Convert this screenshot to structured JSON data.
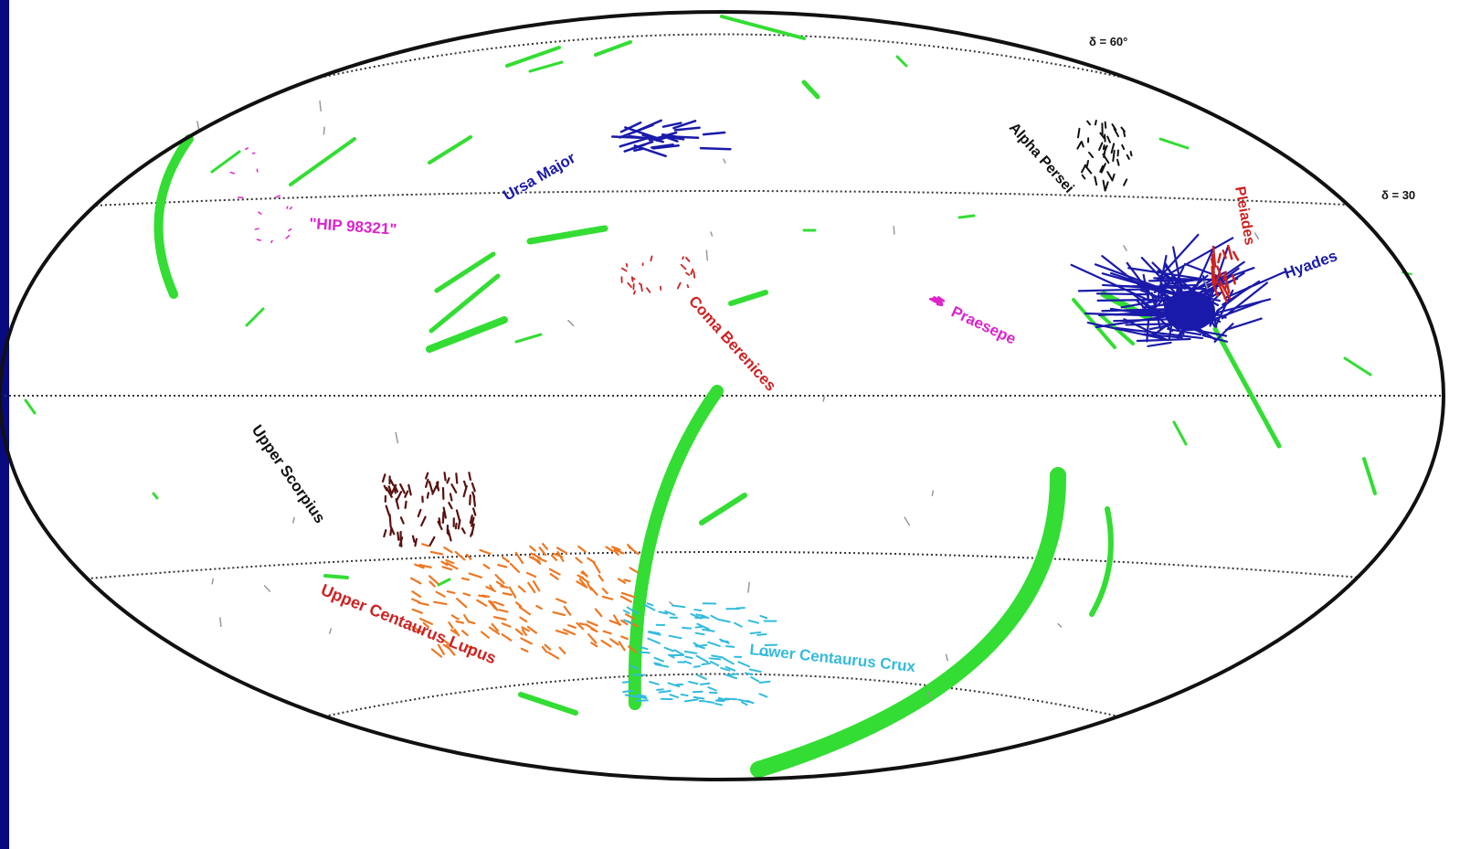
{
  "colors": {
    "frame_bar": "#0a0a80",
    "outline": "#111111",
    "grid": "#333333",
    "green": "#33dd33",
    "navy": "#1a1aaa",
    "black": "#111111",
    "red": "#cc2222",
    "magenta": "#dd22cc",
    "dark_red": "#5a1010",
    "orange": "#ee7722",
    "cyan": "#33bbdd"
  },
  "gridlines": {
    "dec_60": "δ = 60°",
    "dec_30": "δ = 30"
  },
  "labels": {
    "ursa_major": "Ursa Major",
    "alpha_persei": "Alpha Persei",
    "pleiades": "Pleiades",
    "hyades": "Hyades",
    "hip_98321": "\"HIP 98321\"",
    "coma_berenices": "Coma Berenices",
    "praesepe": "Praesepe",
    "upper_scorpius": "Upper Scorpius",
    "upper_centaurus_lupus": "Upper Centaurus Lupus",
    "lower_centaurus_crux": "Lower Centaurus Crux"
  }
}
